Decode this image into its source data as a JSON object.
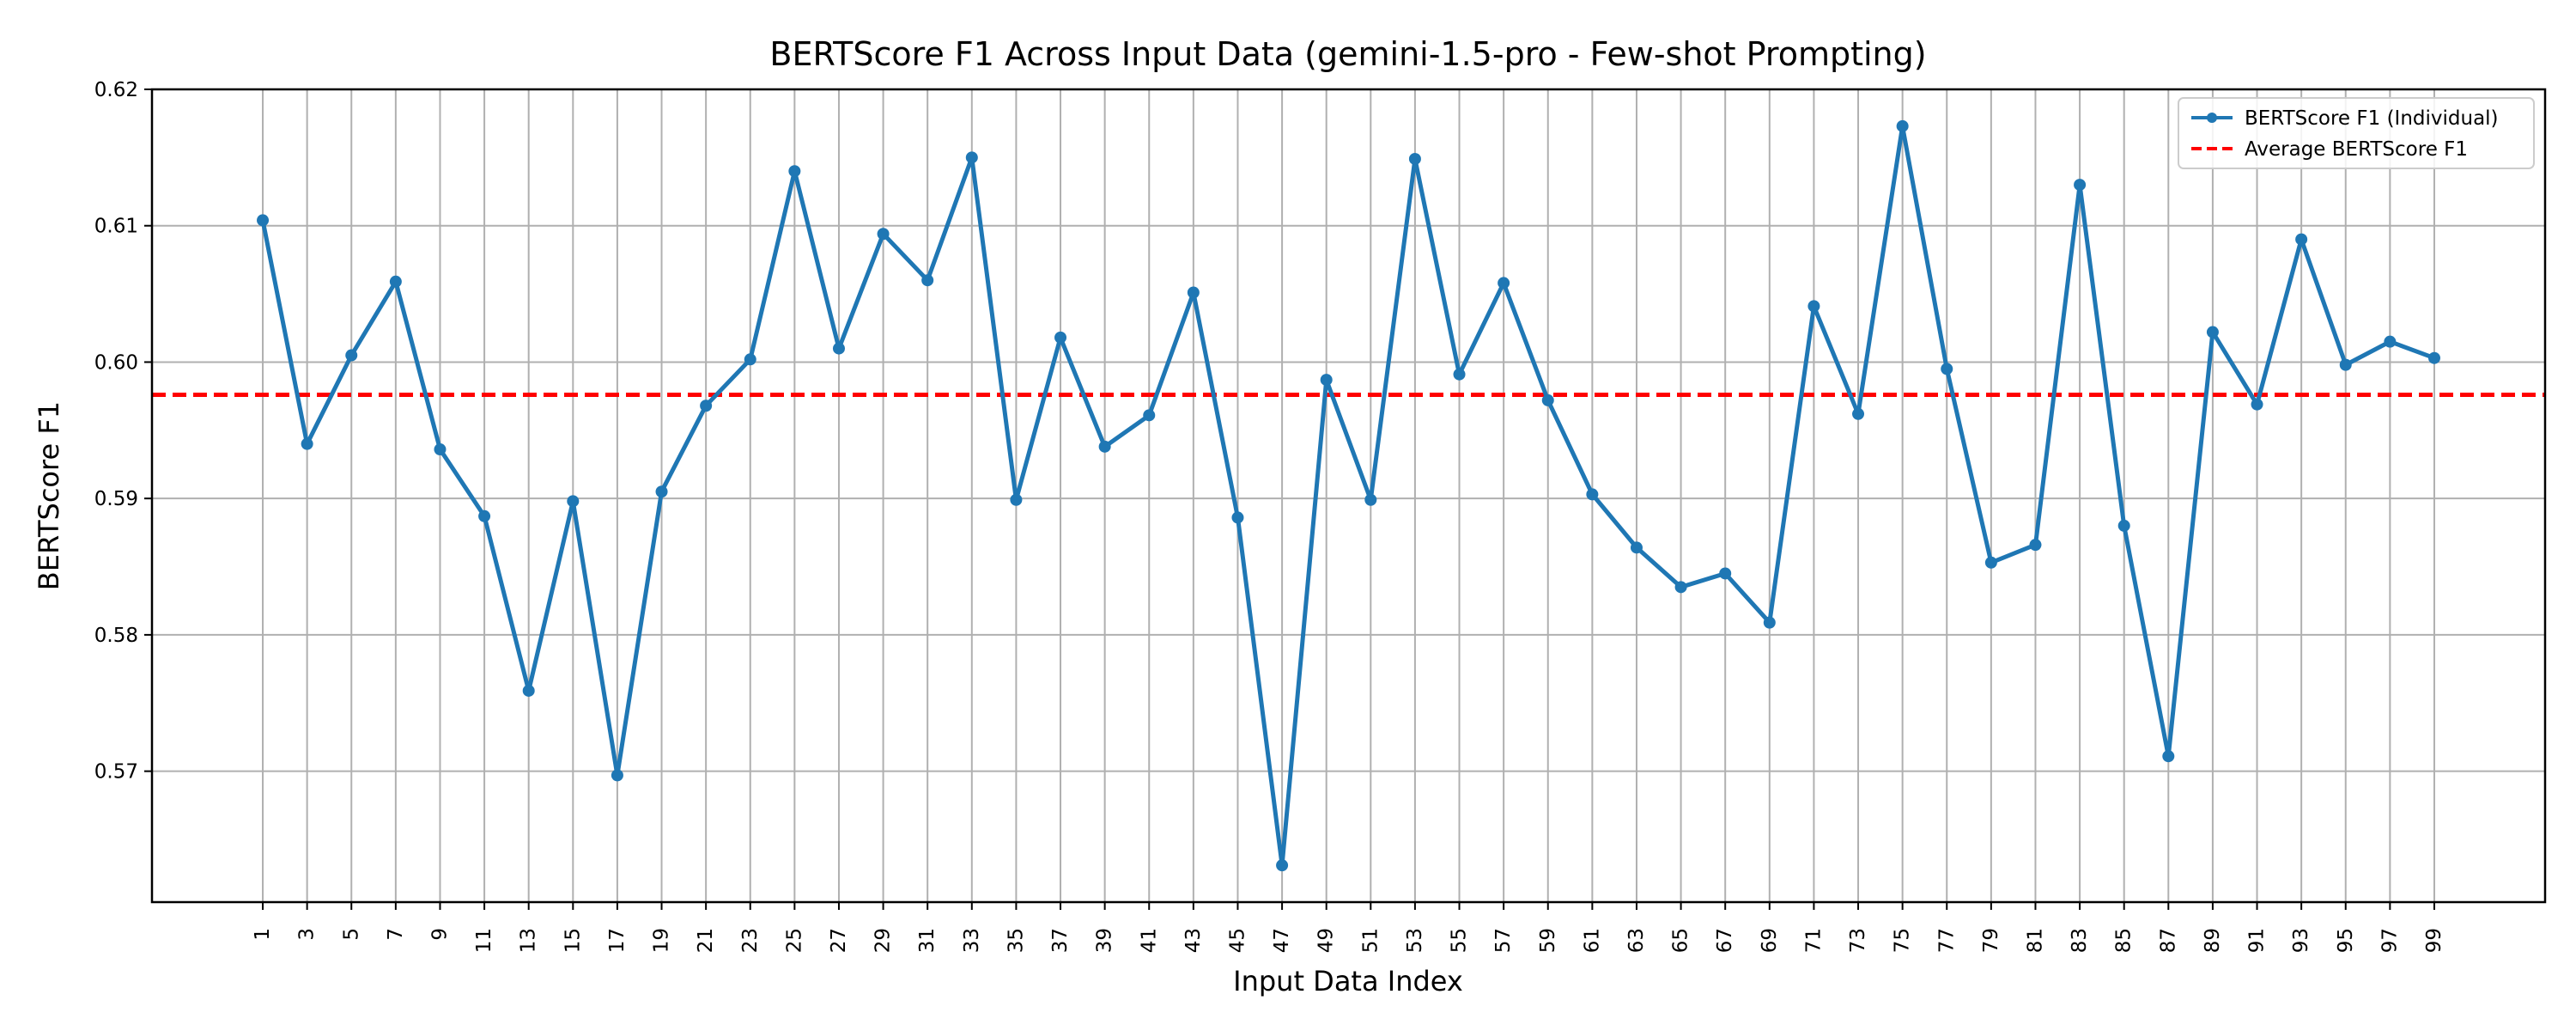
{
  "chart_data": {
    "type": "line",
    "title": "BERTScore F1 Across Input Data (gemini-1.5-pro - Few-shot Prompting)",
    "xlabel": "Input Data Index",
    "ylabel": "BERTScore F1",
    "x": [
      1,
      3,
      5,
      7,
      9,
      11,
      13,
      15,
      17,
      19,
      21,
      23,
      25,
      27,
      29,
      31,
      33,
      35,
      37,
      39,
      41,
      43,
      45,
      47,
      49,
      51,
      53,
      55,
      57,
      59,
      61,
      63,
      65,
      67,
      69,
      71,
      73,
      75,
      77,
      79,
      81,
      83,
      85,
      87,
      89,
      91,
      93,
      95,
      97,
      99
    ],
    "xticks": [
      "1",
      "3",
      "5",
      "7",
      "9",
      "11",
      "13",
      "15",
      "17",
      "19",
      "21",
      "23",
      "25",
      "27",
      "29",
      "31",
      "33",
      "35",
      "37",
      "39",
      "41",
      "43",
      "45",
      "47",
      "49",
      "51",
      "53",
      "55",
      "57",
      "59",
      "61",
      "63",
      "65",
      "67",
      "69",
      "71",
      "73",
      "75",
      "77",
      "79",
      "81",
      "83",
      "85",
      "87",
      "89",
      "91",
      "93",
      "95",
      "97",
      "99"
    ],
    "yticks": [
      "0.57",
      "0.58",
      "0.59",
      "0.60",
      "0.61",
      "0.62"
    ],
    "ylim": [
      0.5604,
      0.62
    ],
    "xlim": [
      -4.0,
      104.0
    ],
    "grid": true,
    "legend_position": "upper right",
    "series": [
      {
        "name": "BERTScore F1 (Individual)",
        "color": "#1f77b4",
        "style": "solid-with-markers",
        "values": [
          0.6104,
          0.594,
          0.6005,
          0.6059,
          0.5936,
          0.5887,
          0.5759,
          0.5898,
          0.5697,
          0.5905,
          0.5968,
          0.6002,
          0.614,
          0.601,
          0.6094,
          0.606,
          0.615,
          0.5899,
          0.6018,
          0.5938,
          0.5961,
          0.6051,
          0.5886,
          0.5631,
          0.5987,
          0.5899,
          0.6149,
          0.5991,
          0.6058,
          0.5972,
          0.5903,
          0.5864,
          0.5835,
          0.5845,
          0.5809,
          0.6041,
          0.5962,
          0.6173,
          0.5995,
          0.5853,
          0.5866,
          0.613,
          0.588,
          0.5711,
          0.6022,
          0.5969,
          0.609,
          0.5998,
          0.6015,
          0.6003
        ]
      },
      {
        "name": "Average BERTScore F1",
        "color": "#ff0000",
        "style": "dashed-horizontal",
        "value": 0.5976
      }
    ]
  }
}
